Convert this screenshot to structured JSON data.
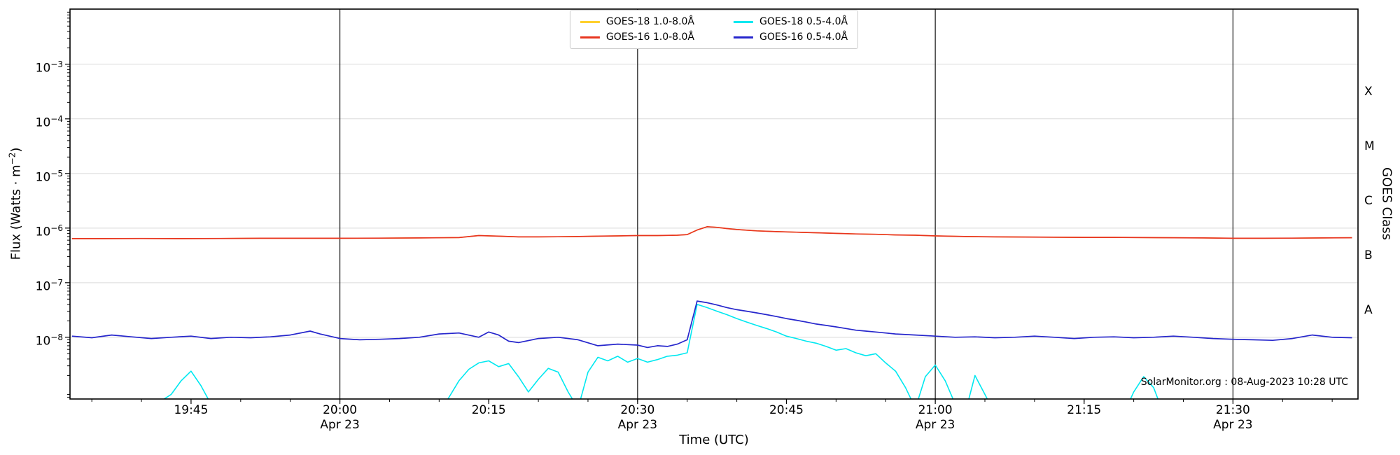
{
  "chart_data": {
    "type": "line",
    "title": "",
    "y_scale": "log",
    "xlabel": "Time (UTC)",
    "ylabel": {
      "pre": "Flux (Watts · m",
      "sup": "−2",
      "post": ")"
    },
    "y2label": "GOES Class",
    "annotation": "SolarMonitor.org : 08-Aug-2023 10:28 UTC",
    "plot": {
      "l": 100,
      "t": 13,
      "r": 1940,
      "b": 570
    },
    "x_range_minutes": [
      1172.8,
      1302.6
    ],
    "ylim_exp": [
      -9.13,
      -1.99
    ],
    "y_ticks_exp": [
      -3,
      -4,
      -5,
      -6,
      -7,
      -8
    ],
    "x_ticks": [
      {
        "t": "19:45",
        "label": "19:45"
      },
      {
        "t": "20:00",
        "label": "20:00",
        "sub": "Apr 23"
      },
      {
        "t": "20:15",
        "label": "20:15"
      },
      {
        "t": "20:30",
        "label": "20:30",
        "sub": "Apr 23"
      },
      {
        "t": "20:45",
        "label": "20:45"
      },
      {
        "t": "21:00",
        "label": "21:00",
        "sub": "Apr 23"
      },
      {
        "t": "21:15",
        "label": "21:15"
      },
      {
        "t": "21:30",
        "label": "21:30",
        "sub": "Apr 23"
      }
    ],
    "x_minor_step_min": 5,
    "vlines": [
      "20:00",
      "20:30",
      "21:00",
      "21:30"
    ],
    "goes_classes": [
      {
        "label": "X",
        "exp": -3.5
      },
      {
        "label": "M",
        "exp": -4.5
      },
      {
        "label": "C",
        "exp": -5.5
      },
      {
        "label": "B",
        "exp": -6.5
      },
      {
        "label": "A",
        "exp": -7.5
      }
    ],
    "colors": {
      "grid": "#d9d9d9",
      "vline": "#111111",
      "spine": "#000000"
    },
    "legend": [
      {
        "label": "GOES-18 1.0-8.0Å",
        "color": "#ffd02e"
      },
      {
        "label": "GOES-16 1.0-8.0Å",
        "color": "#e8351f"
      },
      {
        "label": "GOES-18 0.5-4.0Å",
        "color": "#00e8f0"
      },
      {
        "label": "GOES-16 0.5-4.0Å",
        "color": "#2626cc"
      }
    ],
    "series": [
      {
        "name": "GOES-18 1.0-8.0Å",
        "color": "#ffd02e",
        "width": 1.5,
        "points_same_as": "GOES-16 1.0-8.0Å"
      },
      {
        "name": "GOES-16 1.0-8.0Å",
        "color": "#e8351f",
        "width": 1.7,
        "points": [
          [
            "19:33",
            6.4e-07
          ],
          [
            "19:36",
            6.4e-07
          ],
          [
            "19:40",
            6.45e-07
          ],
          [
            "19:44",
            6.4e-07
          ],
          [
            "19:48",
            6.45e-07
          ],
          [
            "19:52",
            6.5e-07
          ],
          [
            "19:56",
            6.5e-07
          ],
          [
            "20:00",
            6.5e-07
          ],
          [
            "20:04",
            6.55e-07
          ],
          [
            "20:08",
            6.6e-07
          ],
          [
            "20:12",
            6.7e-07
          ],
          [
            "20:14",
            7.3e-07
          ],
          [
            "20:16",
            7.1e-07
          ],
          [
            "20:18",
            6.9e-07
          ],
          [
            "20:20",
            6.9e-07
          ],
          [
            "20:22",
            6.95e-07
          ],
          [
            "20:24",
            7e-07
          ],
          [
            "20:26",
            7.1e-07
          ],
          [
            "20:28",
            7.2e-07
          ],
          [
            "20:30",
            7.3e-07
          ],
          [
            "20:32",
            7.3e-07
          ],
          [
            "20:34",
            7.4e-07
          ],
          [
            "20:35",
            7.6e-07
          ],
          [
            "20:36",
            9.2e-07
          ],
          [
            "20:37",
            1.06e-06
          ],
          [
            "20:38",
            1.03e-06
          ],
          [
            "20:39",
            9.8e-07
          ],
          [
            "20:40",
            9.4e-07
          ],
          [
            "20:42",
            8.9e-07
          ],
          [
            "20:44",
            8.6e-07
          ],
          [
            "20:46",
            8.4e-07
          ],
          [
            "20:48",
            8.2e-07
          ],
          [
            "20:50",
            8e-07
          ],
          [
            "20:52",
            7.8e-07
          ],
          [
            "20:54",
            7.7e-07
          ],
          [
            "20:56",
            7.5e-07
          ],
          [
            "20:58",
            7.4e-07
          ],
          [
            "21:00",
            7.2e-07
          ],
          [
            "21:03",
            7e-07
          ],
          [
            "21:06",
            6.9e-07
          ],
          [
            "21:09",
            6.85e-07
          ],
          [
            "21:12",
            6.8e-07
          ],
          [
            "21:15",
            6.75e-07
          ],
          [
            "21:18",
            6.75e-07
          ],
          [
            "21:21",
            6.7e-07
          ],
          [
            "21:24",
            6.65e-07
          ],
          [
            "21:27",
            6.6e-07
          ],
          [
            "21:30",
            6.5e-07
          ],
          [
            "21:33",
            6.5e-07
          ],
          [
            "21:36",
            6.55e-07
          ],
          [
            "21:39",
            6.6e-07
          ],
          [
            "21:42",
            6.65e-07
          ]
        ]
      },
      {
        "name": "GOES-18 0.5-4.0Å",
        "color": "#00e8f0",
        "width": 1.6,
        "points": [
          [
            "19:33",
            4e-10
          ],
          [
            "19:40",
            4e-10
          ],
          [
            "19:43",
            9e-10
          ],
          [
            "19:44",
            1.6e-09
          ],
          [
            "19:45",
            2.4e-09
          ],
          [
            "19:46",
            1.3e-09
          ],
          [
            "19:47",
            6e-10
          ],
          [
            "19:48",
            4e-10
          ],
          [
            "20:10",
            4e-10
          ],
          [
            "20:12",
            1.6e-09
          ],
          [
            "20:13",
            2.6e-09
          ],
          [
            "20:14",
            3.4e-09
          ],
          [
            "20:15",
            3.7e-09
          ],
          [
            "20:16",
            2.9e-09
          ],
          [
            "20:17",
            3.3e-09
          ],
          [
            "20:18",
            1.9e-09
          ],
          [
            "20:19",
            1e-09
          ],
          [
            "20:20",
            1.7e-09
          ],
          [
            "20:21",
            2.7e-09
          ],
          [
            "20:22",
            2.3e-09
          ],
          [
            "20:23",
            1e-09
          ],
          [
            "20:24",
            5e-10
          ],
          [
            "20:25",
            2.3e-09
          ],
          [
            "20:26",
            4.3e-09
          ],
          [
            "20:27",
            3.7e-09
          ],
          [
            "20:28",
            4.5e-09
          ],
          [
            "20:29",
            3.5e-09
          ],
          [
            "20:30",
            4.1e-09
          ],
          [
            "20:31",
            3.5e-09
          ],
          [
            "20:32",
            3.9e-09
          ],
          [
            "20:33",
            4.5e-09
          ],
          [
            "20:34",
            4.7e-09
          ],
          [
            "20:35",
            5.2e-09
          ],
          [
            "20:36",
            4e-08
          ],
          [
            "20:37",
            3.5e-08
          ],
          [
            "20:38",
            3e-08
          ],
          [
            "20:39",
            2.6e-08
          ],
          [
            "20:40",
            2.2e-08
          ],
          [
            "20:41",
            1.9e-08
          ],
          [
            "20:42",
            1.65e-08
          ],
          [
            "20:43",
            1.45e-08
          ],
          [
            "20:44",
            1.25e-08
          ],
          [
            "20:45",
            1.05e-08
          ],
          [
            "20:46",
            9.5e-09
          ],
          [
            "20:47",
            8.5e-09
          ],
          [
            "20:48",
            7.8e-09
          ],
          [
            "20:49",
            6.8e-09
          ],
          [
            "20:50",
            5.8e-09
          ],
          [
            "20:51",
            6.2e-09
          ],
          [
            "20:52",
            5.2e-09
          ],
          [
            "20:53",
            4.6e-09
          ],
          [
            "20:54",
            5e-09
          ],
          [
            "20:55",
            3.4e-09
          ],
          [
            "20:56",
            2.4e-09
          ],
          [
            "20:57",
            1.2e-09
          ],
          [
            "20:58",
            5e-10
          ],
          [
            "20:59",
            1.9e-09
          ],
          [
            "21:00",
            3.1e-09
          ],
          [
            "21:01",
            1.6e-09
          ],
          [
            "21:02",
            6e-10
          ],
          [
            "21:03",
            4e-10
          ],
          [
            "21:04",
            2e-09
          ],
          [
            "21:05",
            9e-10
          ],
          [
            "21:06",
            4e-10
          ],
          [
            "21:19",
            4e-10
          ],
          [
            "21:20",
            1e-09
          ],
          [
            "21:21",
            1.9e-09
          ],
          [
            "21:22",
            1.2e-09
          ],
          [
            "21:23",
            4e-10
          ],
          [
            "21:42",
            4e-10
          ]
        ]
      },
      {
        "name": "GOES-16 0.5-4.0Å",
        "color": "#2626cc",
        "width": 1.7,
        "points": [
          [
            "19:33",
            1.05e-08
          ],
          [
            "19:35",
            9.8e-09
          ],
          [
            "19:37",
            1.1e-08
          ],
          [
            "19:39",
            1.02e-08
          ],
          [
            "19:41",
            9.5e-09
          ],
          [
            "19:43",
            1e-08
          ],
          [
            "19:45",
            1.05e-08
          ],
          [
            "19:47",
            9.5e-09
          ],
          [
            "19:49",
            1e-08
          ],
          [
            "19:51",
            9.8e-09
          ],
          [
            "19:53",
            1.02e-08
          ],
          [
            "19:55",
            1.1e-08
          ],
          [
            "19:57",
            1.3e-08
          ],
          [
            "19:58",
            1.15e-08
          ],
          [
            "20:00",
            9.5e-09
          ],
          [
            "20:02",
            9e-09
          ],
          [
            "20:04",
            9.2e-09
          ],
          [
            "20:06",
            9.5e-09
          ],
          [
            "20:08",
            1e-08
          ],
          [
            "20:10",
            1.15e-08
          ],
          [
            "20:12",
            1.2e-08
          ],
          [
            "20:14",
            1e-08
          ],
          [
            "20:15",
            1.25e-08
          ],
          [
            "20:16",
            1.1e-08
          ],
          [
            "20:17",
            8.5e-09
          ],
          [
            "20:18",
            8e-09
          ],
          [
            "20:20",
            9.5e-09
          ],
          [
            "20:22",
            1e-08
          ],
          [
            "20:24",
            9e-09
          ],
          [
            "20:26",
            7e-09
          ],
          [
            "20:28",
            7.5e-09
          ],
          [
            "20:30",
            7.2e-09
          ],
          [
            "20:31",
            6.5e-09
          ],
          [
            "20:32",
            7e-09
          ],
          [
            "20:33",
            6.8e-09
          ],
          [
            "20:34",
            7.5e-09
          ],
          [
            "20:35",
            9e-09
          ],
          [
            "20:36",
            4.6e-08
          ],
          [
            "20:37",
            4.3e-08
          ],
          [
            "20:38",
            3.9e-08
          ],
          [
            "20:39",
            3.5e-08
          ],
          [
            "20:40",
            3.2e-08
          ],
          [
            "20:41",
            3e-08
          ],
          [
            "20:42",
            2.8e-08
          ],
          [
            "20:43",
            2.6e-08
          ],
          [
            "20:44",
            2.4e-08
          ],
          [
            "20:45",
            2.2e-08
          ],
          [
            "20:46",
            2.05e-08
          ],
          [
            "20:47",
            1.9e-08
          ],
          [
            "20:48",
            1.75e-08
          ],
          [
            "20:49",
            1.65e-08
          ],
          [
            "20:50",
            1.55e-08
          ],
          [
            "20:51",
            1.45e-08
          ],
          [
            "20:52",
            1.35e-08
          ],
          [
            "20:53",
            1.3e-08
          ],
          [
            "20:54",
            1.25e-08
          ],
          [
            "20:55",
            1.2e-08
          ],
          [
            "20:56",
            1.15e-08
          ],
          [
            "20:58",
            1.1e-08
          ],
          [
            "21:00",
            1.05e-08
          ],
          [
            "21:02",
            1e-08
          ],
          [
            "21:04",
            1.02e-08
          ],
          [
            "21:06",
            9.8e-09
          ],
          [
            "21:08",
            1e-08
          ],
          [
            "21:10",
            1.05e-08
          ],
          [
            "21:12",
            1e-08
          ],
          [
            "21:14",
            9.5e-09
          ],
          [
            "21:16",
            1e-08
          ],
          [
            "21:18",
            1.02e-08
          ],
          [
            "21:20",
            9.8e-09
          ],
          [
            "21:22",
            1e-08
          ],
          [
            "21:24",
            1.05e-08
          ],
          [
            "21:26",
            1e-08
          ],
          [
            "21:28",
            9.5e-09
          ],
          [
            "21:30",
            9.2e-09
          ],
          [
            "21:32",
            9e-09
          ],
          [
            "21:34",
            8.8e-09
          ],
          [
            "21:36",
            9.5e-09
          ],
          [
            "21:38",
            1.1e-08
          ],
          [
            "21:40",
            1e-08
          ],
          [
            "21:42",
            9.8e-09
          ]
        ]
      }
    ]
  }
}
